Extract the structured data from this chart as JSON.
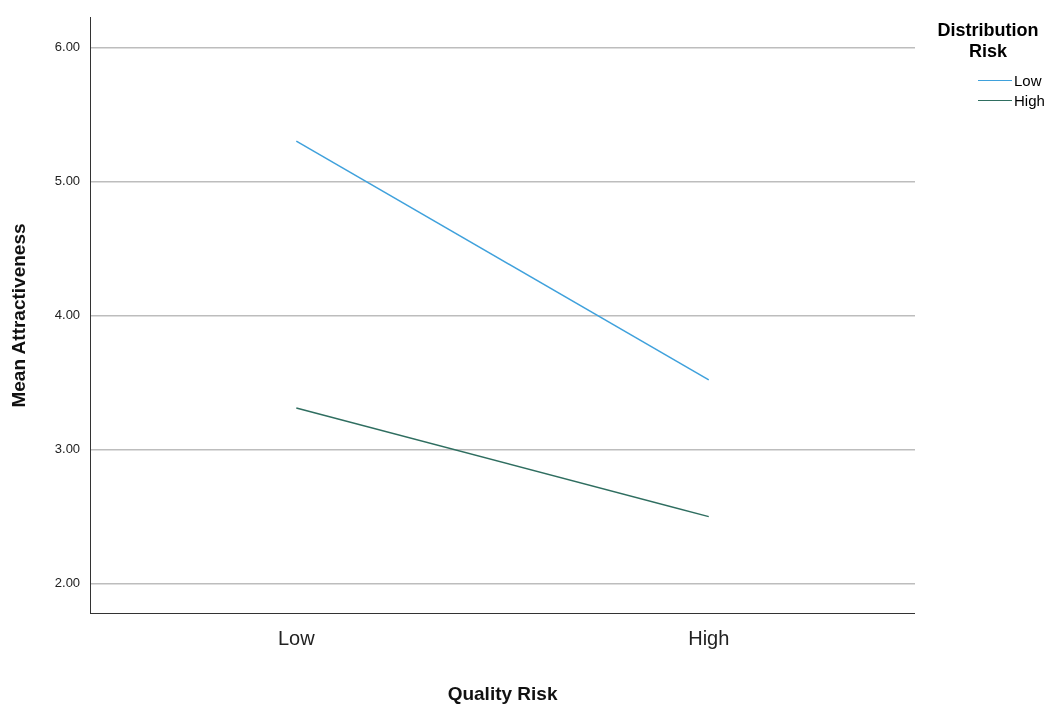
{
  "chart_data": {
    "type": "line",
    "xlabel": "Quality Risk",
    "ylabel": "Mean Attractiveness",
    "legend_title": "Distribution Risk",
    "categories": [
      "Low",
      "High"
    ],
    "series": [
      {
        "name": "Low",
        "color": "#3fa1dc",
        "values": [
          5.3,
          3.52
        ]
      },
      {
        "name": "High",
        "color": "#2f6e60",
        "values": [
          3.31,
          2.5
        ]
      }
    ],
    "ylim": [
      1.78,
      6.22
    ],
    "yticks": [
      {
        "value": 2,
        "label": "2.00"
      },
      {
        "value": 3,
        "label": "3.00"
      },
      {
        "value": 4,
        "label": "4.00"
      },
      {
        "value": 5,
        "label": "5.00"
      },
      {
        "value": 6,
        "label": "6.00"
      }
    ],
    "grid": "y",
    "legend": "right",
    "marker": "none"
  }
}
